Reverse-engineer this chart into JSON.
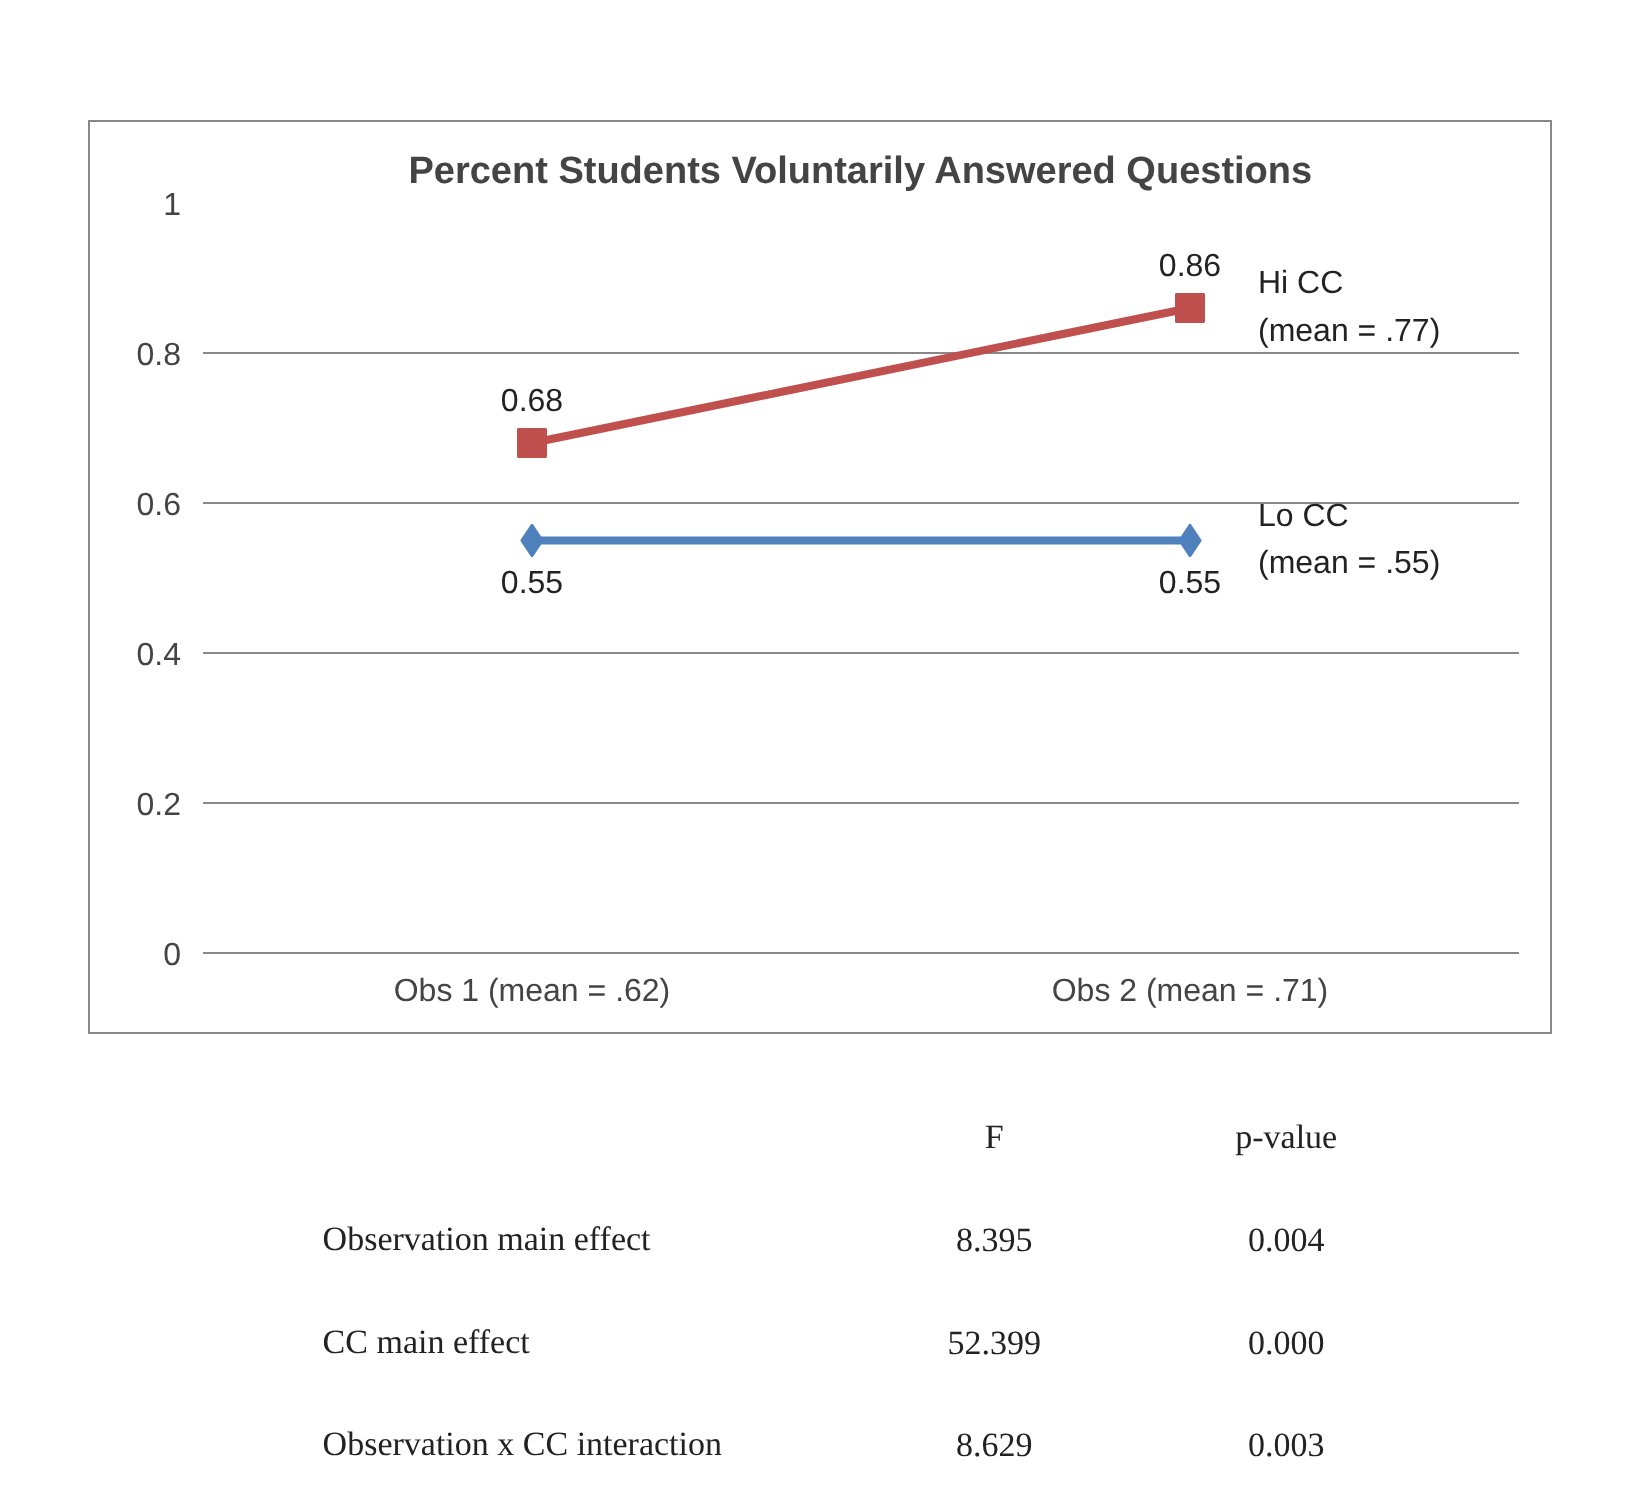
{
  "chart_data": {
    "type": "line",
    "title": "Percent Students Voluntarily Answered Questions",
    "categories": [
      "Obs 1 (mean = .62)",
      "Obs 2 (mean = .71)"
    ],
    "series": [
      {
        "name": "Hi CC\n(mean = .77)",
        "color": "#c0504d",
        "values": [
          0.68,
          0.86
        ],
        "marker": "square"
      },
      {
        "name": "Lo CC\n(mean = .55)",
        "color": "#4f81bd",
        "values": [
          0.55,
          0.55
        ],
        "marker": "diamond"
      }
    ],
    "ylim": [
      0,
      1
    ],
    "yticks": [
      0,
      0.2,
      0.4,
      0.6,
      0.8,
      1
    ],
    "grid": "y",
    "data_labels": true,
    "annotations": [
      "F",
      "p-value",
      "Observation main effect",
      "8.395",
      "0.004",
      "CC main effect",
      "52.399",
      "0.000",
      "Observation x CC interaction",
      "8.629",
      "0.003"
    ]
  }
}
